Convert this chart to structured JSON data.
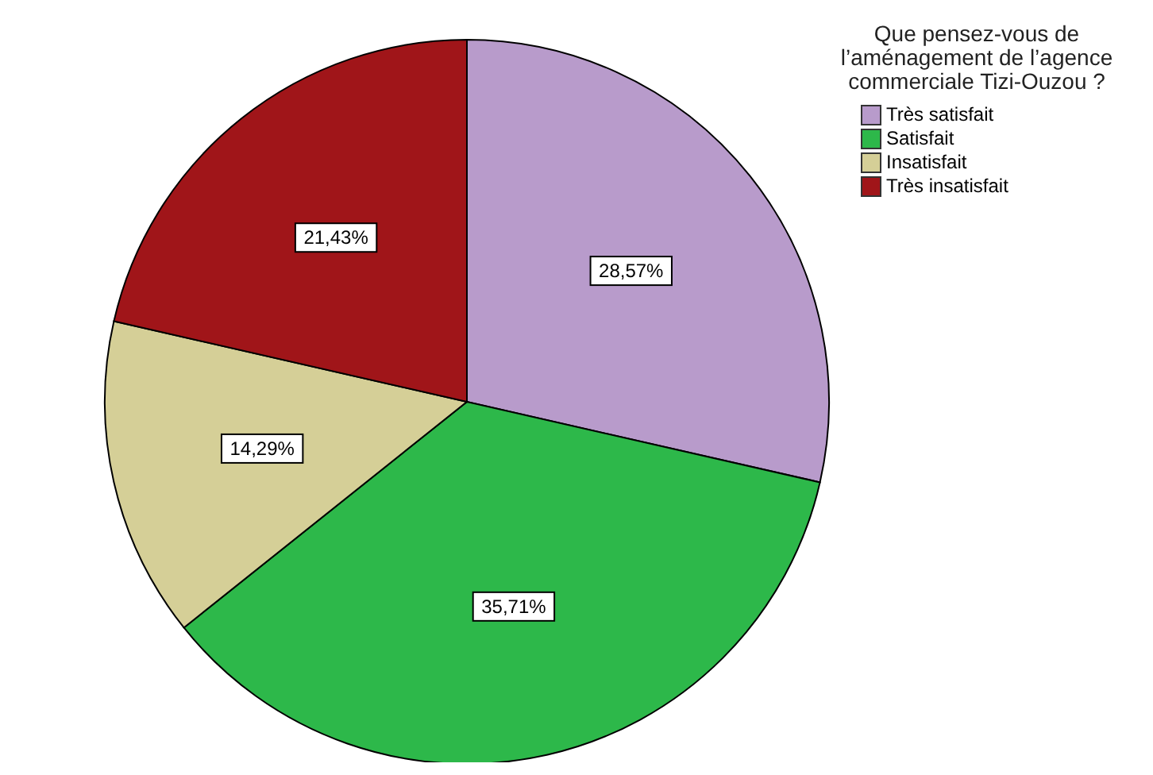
{
  "chart_data": {
    "type": "pie",
    "legend_title": "Que pensez-vous de l’aménagement de l’agence commerciale Tizi-Ouzou ?",
    "categories": [
      "Très satisfait",
      "Satisfait",
      "Insatisfait",
      "Très insatisfait"
    ],
    "values": [
      28.57,
      35.71,
      14.29,
      21.43
    ],
    "value_labels": [
      "28,57%",
      "35,71%",
      "14,29%",
      "21,43%"
    ],
    "colors": [
      "#b89bcb",
      "#2db84a",
      "#d5cf97",
      "#a01519"
    ],
    "legend": "top right"
  }
}
